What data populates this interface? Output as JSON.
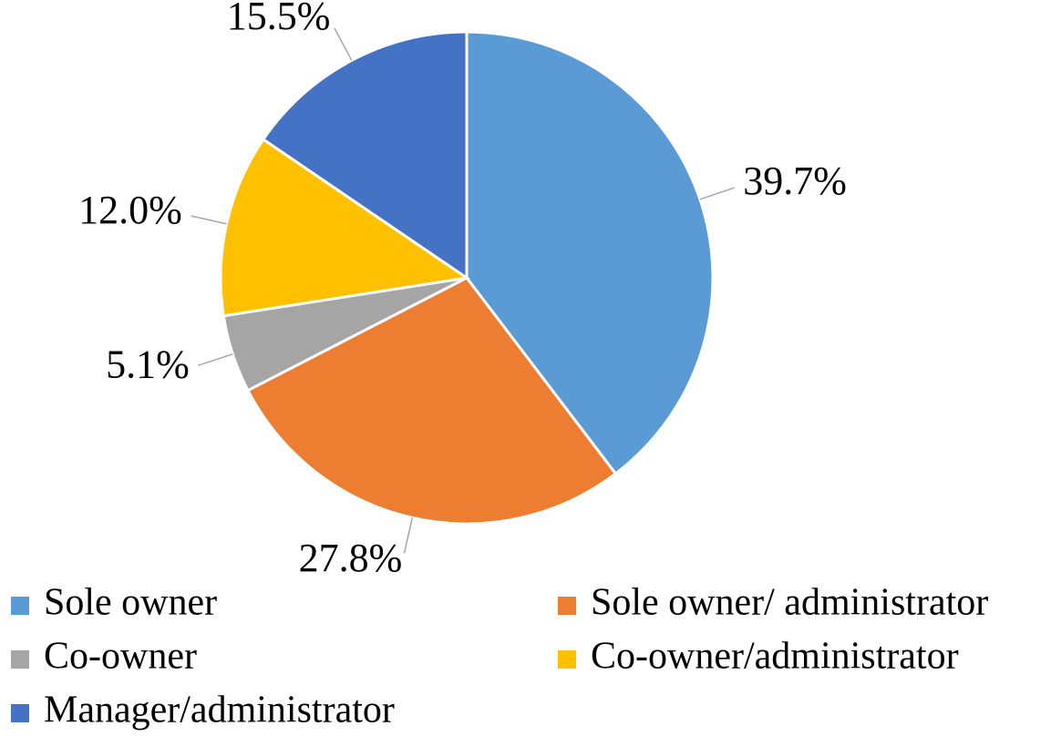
{
  "chart_data": {
    "type": "pie",
    "categories": [
      "Sole owner",
      "Sole owner/ administrator",
      "Co-owner",
      "Co-owner/administrator",
      "Manager/administrator"
    ],
    "values": [
      39.7,
      27.8,
      5.1,
      12.0,
      15.5
    ],
    "value_labels": [
      "39.7%",
      "27.8%",
      "5.1%",
      "12.0%",
      "15.5%"
    ],
    "colors": [
      "#5b9bd5",
      "#ed7d31",
      "#a5a5a5",
      "#ffc000",
      "#4472c4"
    ],
    "legend": "bottom"
  }
}
